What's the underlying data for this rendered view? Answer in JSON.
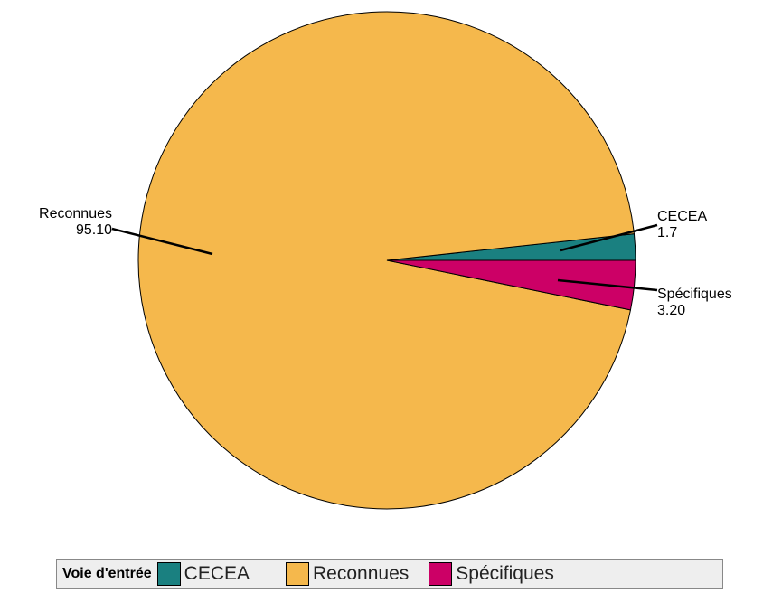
{
  "chart_data": {
    "type": "pie",
    "title": "",
    "slices": [
      {
        "label": "CECEA",
        "value": 1.7,
        "value_label": "1.7",
        "color": "#1a8080"
      },
      {
        "label": "Reconnues",
        "value": 95.1,
        "value_label": "95.10",
        "color": "#f5b84c"
      },
      {
        "label": "Spécifiques",
        "value": 3.2,
        "value_label": "3.20",
        "color": "#cc0066"
      }
    ]
  },
  "legend": {
    "title": "Voie d'entrée",
    "items": [
      "CECEA",
      "Reconnues",
      "Spécifiques"
    ],
    "colors": [
      "#1a8080",
      "#f5b84c",
      "#cc0066"
    ],
    "placement": "bottom"
  }
}
